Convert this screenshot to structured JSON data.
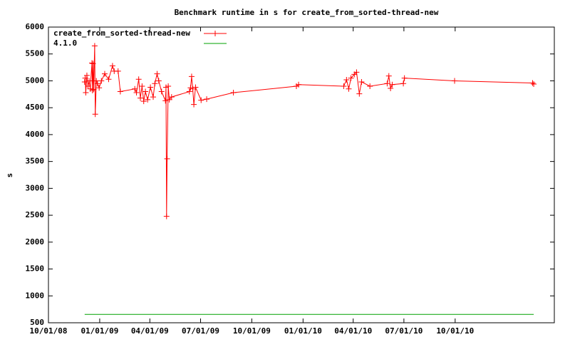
{
  "chart_data": {
    "type": "line",
    "title": "Benchmark runtime in s for create_from_sorted-thread-new",
    "y_label": "s",
    "xlim": [
      "2008-10-01",
      "2011-03-28"
    ],
    "xticks": [
      {
        "value": "2008-10-01",
        "label": "10/01/08"
      },
      {
        "value": "2009-01-01",
        "label": "01/01/09"
      },
      {
        "value": "2009-04-01",
        "label": "04/01/09"
      },
      {
        "value": "2009-07-01",
        "label": "07/01/09"
      },
      {
        "value": "2009-10-01",
        "label": "10/01/09"
      },
      {
        "value": "2010-01-01",
        "label": "01/01/10"
      },
      {
        "value": "2010-04-01",
        "label": "04/01/10"
      },
      {
        "value": "2010-07-01",
        "label": "07/01/10"
      },
      {
        "value": "2010-10-01",
        "label": "10/01/10"
      }
    ],
    "ylim": [
      500,
      6000
    ],
    "yticks": [
      500,
      1000,
      1500,
      2000,
      2500,
      3000,
      3500,
      4000,
      4500,
      5000,
      5500,
      6000
    ],
    "legend": "top-left",
    "series": [
      {
        "name": "create_from_sorted-thread-new",
        "color": "#ff0000",
        "markers": true,
        "x": [
          "2008-12-05",
          "2008-12-06",
          "2008-12-07",
          "2008-12-09",
          "2008-12-11",
          "2008-12-13",
          "2008-12-15",
          "2008-12-18",
          "2008-12-19",
          "2008-12-20",
          "2008-12-21",
          "2008-12-23",
          "2008-12-24",
          "2008-12-26",
          "2008-12-28",
          "2008-12-31",
          "2009-01-04",
          "2009-01-10",
          "2009-01-17",
          "2009-01-24",
          "2009-01-27",
          "2009-02-03",
          "2009-02-07",
          "2009-03-05",
          "2009-03-08",
          "2009-03-12",
          "2009-03-15",
          "2009-03-18",
          "2009-03-21",
          "2009-03-24",
          "2009-03-28",
          "2009-04-02",
          "2009-04-07",
          "2009-04-10",
          "2009-04-14",
          "2009-04-17",
          "2009-04-22",
          "2009-04-29",
          "2009-04-30",
          "2009-05-01",
          "2009-05-02",
          "2009-05-04",
          "2009-05-06",
          "2009-05-10",
          "2009-06-11",
          "2009-06-13",
          "2009-06-15",
          "2009-06-17",
          "2009-06-19",
          "2009-06-22",
          "2009-07-02",
          "2009-07-12",
          "2009-08-29",
          "2009-12-20",
          "2009-12-24",
          "2010-03-15",
          "2010-03-20",
          "2010-03-24",
          "2010-03-28",
          "2010-04-03",
          "2010-04-07",
          "2010-04-12",
          "2010-04-16",
          "2010-05-01",
          "2010-06-01",
          "2010-06-04",
          "2010-06-07",
          "2010-06-10",
          "2010-06-30",
          "2010-07-02",
          "2010-09-30",
          "2011-02-17",
          "2011-02-19"
        ],
        "values": [
          4980,
          5050,
          4780,
          5100,
          4900,
          5000,
          4850,
          5330,
          4820,
          5320,
          4840,
          5650,
          4380,
          5000,
          4950,
          4870,
          5000,
          5130,
          5030,
          5280,
          5180,
          5180,
          4800,
          4850,
          4780,
          5030,
          4680,
          4900,
          4620,
          4800,
          4650,
          4880,
          4700,
          4950,
          5130,
          5000,
          4800,
          4630,
          4880,
          2480,
          3550,
          4900,
          4650,
          4700,
          4800,
          4870,
          5080,
          4850,
          4560,
          4880,
          4640,
          4660,
          4780,
          4900,
          4930,
          4900,
          5020,
          4850,
          5050,
          5120,
          5160,
          4760,
          4980,
          4900,
          4950,
          5090,
          4860,
          4930,
          4950,
          5050,
          5000,
          4960,
          4940
        ]
      },
      {
        "name": "4.1.0",
        "color": "#00a000",
        "markers": false,
        "x": [
          "2008-12-05",
          "2011-02-19"
        ],
        "values": [
          655,
          655
        ]
      }
    ]
  }
}
